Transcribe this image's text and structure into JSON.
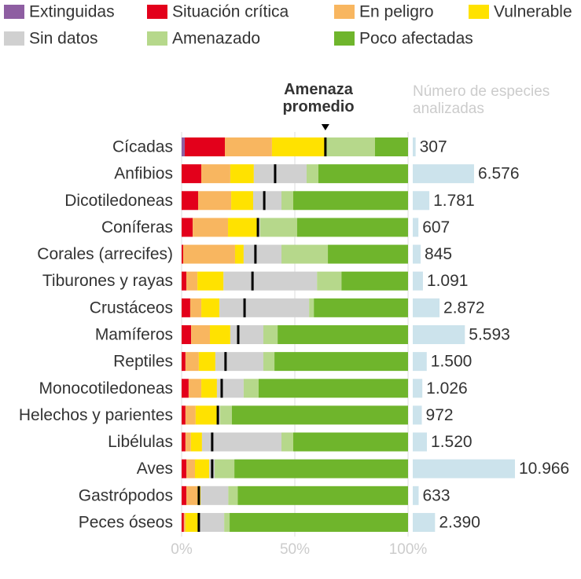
{
  "chart_data": {
    "type": "stacked-bar-100",
    "categories": [
      "Cícadas",
      "Anfibios",
      "Dicotiledoneas",
      "Coníferas",
      "Corales (arrecifes)",
      "Tiburones y rayas",
      "Crustáceos",
      "Mamíferos",
      "Reptiles",
      "Monocotiledoneas",
      "Helechos y parientes",
      "Libélulas",
      "Aves",
      "Gastrópodos",
      "Peces óseos"
    ],
    "series": [
      {
        "name": "Extinguidas",
        "color": "#8e5ea2",
        "values": [
          1.4,
          0,
          0,
          0,
          0,
          0,
          0,
          0,
          0,
          0,
          0,
          0,
          0,
          0,
          0
        ]
      },
      {
        "name": "Situación crítica",
        "color": "#e3001b",
        "values": [
          17.7,
          8.7,
          7.3,
          4.9,
          0.7,
          2.1,
          3.8,
          4.2,
          1.7,
          3.1,
          1.7,
          1.7,
          2.1,
          2.1,
          1.0
        ]
      },
      {
        "name": "En peligro",
        "color": "#f8b660",
        "values": [
          20.8,
          12.8,
          14.6,
          15.6,
          22.9,
          4.9,
          4.9,
          8.3,
          5.9,
          5.6,
          4.5,
          2.4,
          3.8,
          4.9,
          0.7
        ]
      },
      {
        "name": "Vulnerable",
        "color": "#ffe200",
        "values": [
          23.3,
          10.4,
          9.7,
          13.2,
          3.8,
          11.5,
          8.0,
          9.0,
          7.3,
          6.9,
          9.4,
          4.9,
          6.3,
          1.4,
          5.6
        ]
      },
      {
        "name": "Sin datos",
        "color": "#d0d0d0",
        "values": [
          0,
          23.3,
          12.5,
          1.0,
          16.7,
          41.3,
          39.6,
          14.6,
          21.2,
          11.8,
          1.4,
          35.1,
          2.4,
          12.2,
          11.5
        ]
      },
      {
        "name": "Amenazado",
        "color": "#b6d88b",
        "values": [
          22.2,
          5.2,
          5.2,
          16.3,
          20.5,
          10.8,
          2.1,
          6.3,
          4.9,
          6.6,
          5.2,
          5.2,
          8.7,
          4.2,
          2.4
        ]
      },
      {
        "name": "Poco afectadas",
        "color": "#6fb52c",
        "values": [
          14.6,
          39.6,
          50.7,
          49.0,
          35.4,
          29.4,
          41.6,
          57.6,
          59.0,
          66.0,
          77.8,
          50.7,
          76.7,
          75.2,
          78.8
        ]
      }
    ],
    "average": {
      "name": "Amenaza promedio",
      "color": "#000000",
      "values": [
        63.5,
        41.3,
        36.5,
        33.7,
        32.6,
        31.3,
        27.8,
        25.0,
        19.4,
        17.7,
        16.0,
        13.5,
        13.5,
        7.6,
        7.6
      ]
    },
    "counts": {
      "name": "Número de especies analizadas",
      "color": "#cce3ec",
      "values": [
        307,
        6576,
        1781,
        607,
        845,
        1091,
        2872,
        5593,
        1500,
        1026,
        972,
        1520,
        10966,
        633,
        2390
      ],
      "value_labels": [
        "307",
        "6.576",
        "1.781",
        "607",
        "845",
        "1.091",
        "2.872",
        "5.593",
        "1.500",
        "1.026",
        "972",
        "1.520",
        "10.966",
        "633",
        "2.390"
      ]
    },
    "xlim": [
      0,
      100
    ],
    "xticks": [
      {
        "value": 0,
        "label": "0%"
      },
      {
        "value": 50,
        "label": "50%"
      },
      {
        "value": 100,
        "label": "100%"
      }
    ],
    "grid": true
  }
}
